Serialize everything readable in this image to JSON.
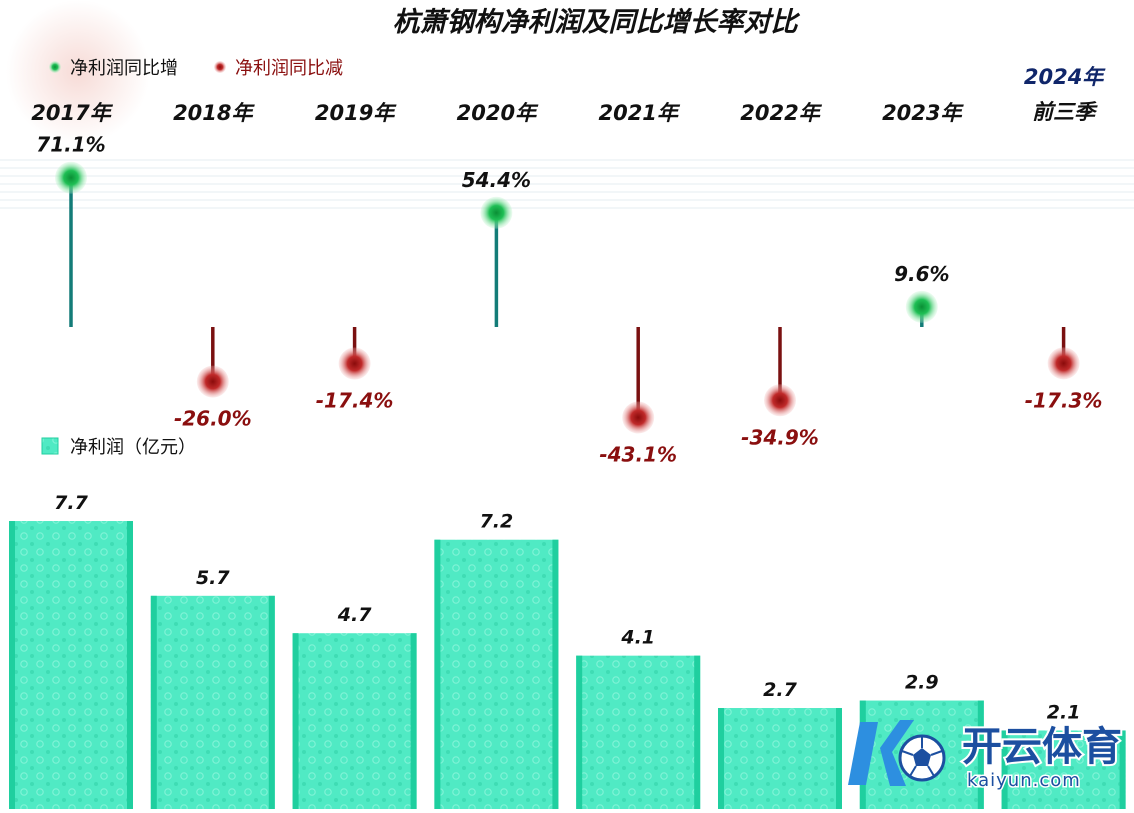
{
  "chart_data": {
    "type": "bar",
    "title": "杭萧钢构净利润及同比增长率对比",
    "categories": [
      "2017年",
      "2018年",
      "2019年",
      "2020年",
      "2021年",
      "2022年",
      "2023年",
      "2024年前三季"
    ],
    "category_lines": [
      [
        "2017年"
      ],
      [
        "2018年"
      ],
      [
        "2019年"
      ],
      [
        "2020年"
      ],
      [
        "2021年"
      ],
      [
        "2022年"
      ],
      [
        "2023年"
      ],
      [
        "2024年",
        "前三季"
      ]
    ],
    "series": [
      {
        "name": "净利润（亿元）",
        "type": "bar",
        "values": [
          7.7,
          5.7,
          4.7,
          7.2,
          4.1,
          2.7,
          2.9,
          2.1
        ],
        "labels": [
          "7.7",
          "5.7",
          "4.7",
          "7.2",
          "4.1",
          "2.7",
          "2.9",
          "2.1"
        ]
      },
      {
        "name": "同比增长率",
        "type": "lollipop",
        "values": [
          71.1,
          -26.0,
          -17.4,
          54.4,
          -43.1,
          -34.9,
          9.6,
          -17.3
        ],
        "labels": [
          "71.1%",
          "-26.0%",
          "-17.4%",
          "54.4%",
          "-43.1%",
          "-34.9%",
          "9.6%",
          "-17.3%"
        ]
      }
    ],
    "legend": [
      {
        "label": "净利润同比增",
        "color": "#12a543"
      },
      {
        "label": "净利润同比减",
        "color": "#b01818"
      },
      {
        "label": "净利润（亿元）",
        "color": "#4fe8c2"
      }
    ],
    "legend_position": "top-left",
    "grid": false
  },
  "colors": {
    "bar": "#4fe8c2",
    "bar_edge": "#1fcf9f",
    "positive": "#12a543",
    "negative": "#b01818",
    "positive_stem": "#137c78",
    "negative_stem": "#7a1010"
  },
  "watermark": {
    "brand": "开云体育",
    "domain": "kaiyun.com",
    "logo_icon": "soccer-ball-k-logo-icon"
  }
}
